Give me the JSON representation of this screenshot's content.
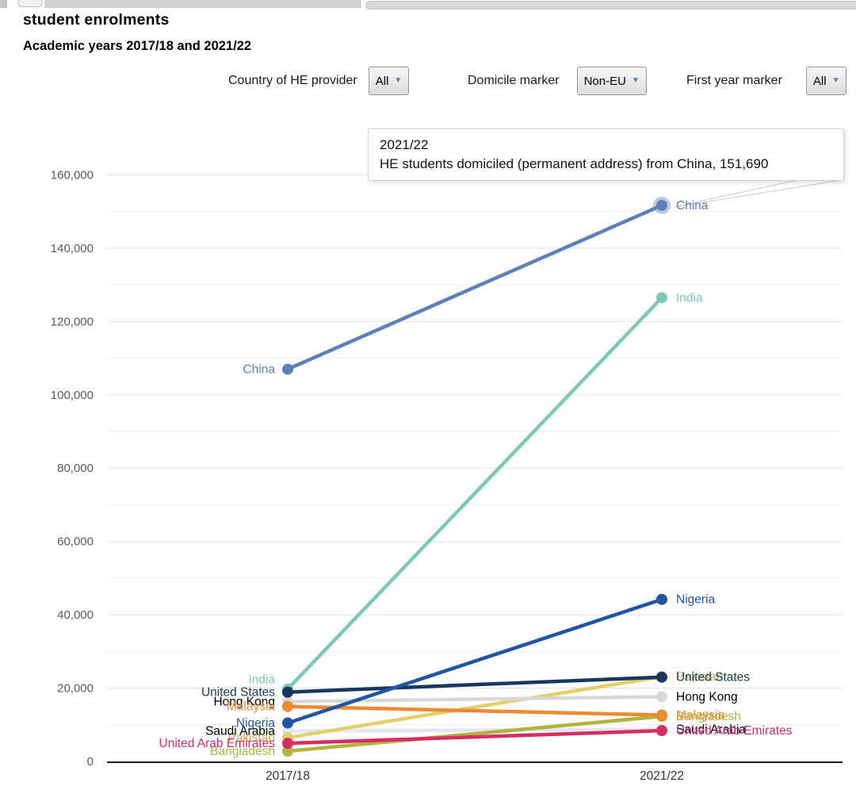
{
  "page": {
    "title": "student enrolments",
    "subtitle": "Academic years 2017/18 and 2021/22"
  },
  "filters": [
    {
      "label": "Country of HE provider",
      "value": "All"
    },
    {
      "label": "Domicile marker",
      "value": "Non-EU"
    },
    {
      "label": "First year marker",
      "value": "All"
    }
  ],
  "tooltip": {
    "line1": "2021/22",
    "line2": "HE students domiciled (permanent address) from China, 151,690"
  },
  "chart_data": {
    "type": "line",
    "subtype": "slope",
    "x": [
      "2017/18",
      "2021/22"
    ],
    "ylim": [
      0,
      160000
    ],
    "ytick_step": 20000,
    "grid_step": 10000,
    "grid": true,
    "legend_position": "inline-labels",
    "highlighted_point": {
      "series": "China",
      "x": "2021/22",
      "value": 151690
    },
    "layout": {
      "grid_minor_color": "#f0f0f0",
      "grid_major_color": "#e3e3e3",
      "axis_color": "#1a1a1a",
      "tick_label_color": "#595959",
      "x_label_color": "#333333"
    },
    "series": [
      {
        "name": "Saudi Arabia",
        "values": [
          8300,
          8750
        ],
        "color": "#e4e7f1",
        "label_color": "#000000"
      },
      {
        "name": "Pakistan",
        "values": [
          6500,
          23100
        ],
        "color": "#e2d06d",
        "label_color": "#c3b14f"
      },
      {
        "name": "Bangladesh",
        "values": [
          2800,
          12300
        ],
        "color": "#b2b43e",
        "label_color": "#b2b43e"
      },
      {
        "name": "United Arab Emirates",
        "values": [
          4950,
          8400
        ],
        "color": "#d62e63",
        "label_color": "#d62e63"
      },
      {
        "name": "Hong Kong",
        "values": [
          16350,
          17650
        ],
        "color": "#d8d8d8",
        "label_color": "#000000"
      },
      {
        "name": "Malaysia",
        "values": [
          15000,
          12650
        ],
        "color": "#ee8a31",
        "label_color": "#ee8a31"
      },
      {
        "name": "India",
        "values": [
          19750,
          126500
        ],
        "color": "#7cc9b6",
        "label_color": "#7cc9b6",
        "label_dy_left": -12
      },
      {
        "name": "United States",
        "values": [
          18900,
          23000
        ],
        "color": "#17375e",
        "label_color": "#17375e"
      },
      {
        "name": "Nigeria",
        "values": [
          10500,
          44200
        ],
        "color": "#2055a4",
        "label_color": "#2055a4"
      },
      {
        "name": "China",
        "values": [
          107000,
          151690
        ],
        "color": "#5e80ba",
        "label_color": "#5e80ba",
        "highlight": true
      }
    ],
    "label_order": [
      "Pakistan",
      "India",
      "Bangladesh",
      "Saudi Arabia",
      "Hong Kong",
      "Malaysia",
      "United States",
      "Nigeria",
      "United Arab Emirates",
      "China"
    ]
  }
}
